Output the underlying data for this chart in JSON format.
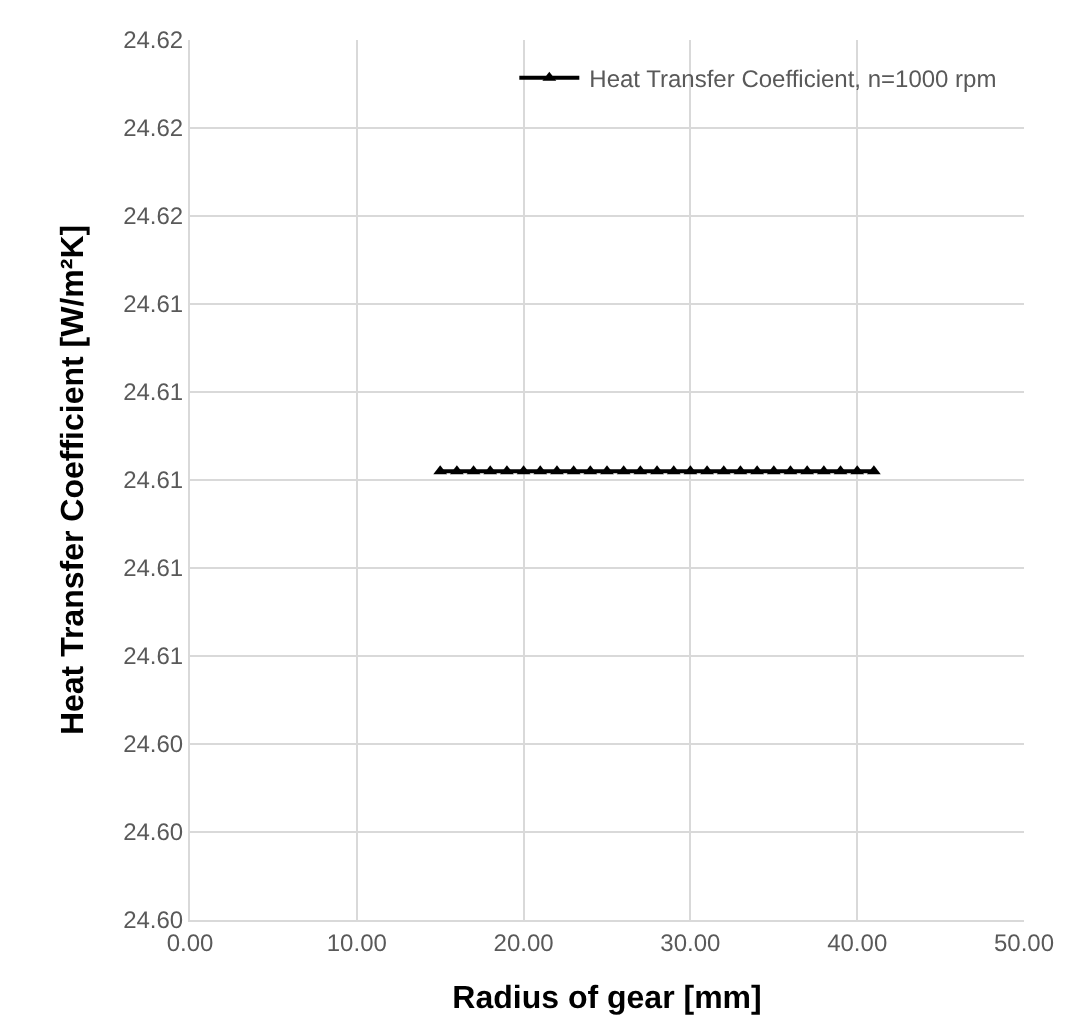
{
  "chart_data": {
    "type": "line",
    "xlabel": "Radius of gear [mm]",
    "ylabel": "Heat Transfer Coefficient [W/m²K]",
    "x": [
      15,
      16,
      17,
      18,
      19,
      20,
      21,
      22,
      23,
      24,
      25,
      26,
      27,
      28,
      29,
      30,
      31,
      32,
      33,
      34,
      35,
      36,
      37,
      38,
      39,
      40,
      41
    ],
    "series": [
      {
        "name": "Heat Transfer Coefficient, n=1000 rpm",
        "color": "#000000",
        "values": [
          24.6102,
          24.6102,
          24.6102,
          24.6102,
          24.6102,
          24.6102,
          24.6102,
          24.6102,
          24.6102,
          24.6102,
          24.6102,
          24.6102,
          24.6102,
          24.6102,
          24.6102,
          24.6102,
          24.6102,
          24.6102,
          24.6102,
          24.6102,
          24.6102,
          24.6102,
          24.6102,
          24.6102,
          24.6102,
          24.6102,
          24.6102
        ]
      }
    ],
    "xlim": [
      0,
      50
    ],
    "xticks": [
      {
        "value": 0,
        "label": "0.00"
      },
      {
        "value": 10,
        "label": "10.00"
      },
      {
        "value": 20,
        "label": "20.00"
      },
      {
        "value": 30,
        "label": "30.00"
      },
      {
        "value": 40,
        "label": "40.00"
      },
      {
        "value": 50,
        "label": "50.00"
      }
    ],
    "ylim": [
      24.6,
      24.62
    ],
    "yticks": [
      {
        "value": 24.6,
        "label": "24.60"
      },
      {
        "value": 24.602,
        "label": "24.60"
      },
      {
        "value": 24.604,
        "label": "24.60"
      },
      {
        "value": 24.606,
        "label": "24.61"
      },
      {
        "value": 24.608,
        "label": "24.61"
      },
      {
        "value": 24.61,
        "label": "24.61"
      },
      {
        "value": 24.612,
        "label": "24.61"
      },
      {
        "value": 24.614,
        "label": "24.61"
      },
      {
        "value": 24.616,
        "label": "24.62"
      },
      {
        "value": 24.618,
        "label": "24.62"
      },
      {
        "value": 24.62,
        "label": "24.62"
      }
    ],
    "grid": true,
    "legend": "top right",
    "marker": "triangle",
    "line_style": "solid"
  }
}
